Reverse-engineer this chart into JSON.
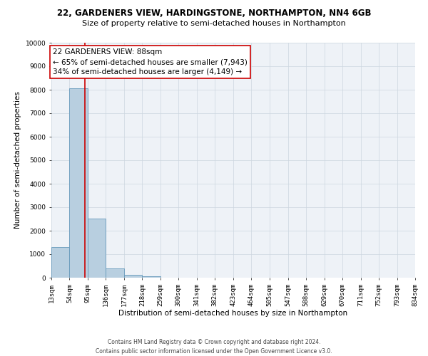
{
  "title_line1": "22, GARDENERS VIEW, HARDINGSTONE, NORTHAMPTON, NN4 6GB",
  "title_line2": "Size of property relative to semi-detached houses in Northampton",
  "xlabel": "Distribution of semi-detached houses by size in Northampton",
  "ylabel": "Number of semi-detached properties",
  "bin_labels": [
    "13sqm",
    "54sqm",
    "95sqm",
    "136sqm",
    "177sqm",
    "218sqm",
    "259sqm",
    "300sqm",
    "341sqm",
    "382sqm",
    "423sqm",
    "464sqm",
    "505sqm",
    "547sqm",
    "588sqm",
    "629sqm",
    "670sqm",
    "711sqm",
    "752sqm",
    "793sqm",
    "834sqm"
  ],
  "bar_heights": [
    1300,
    8050,
    2520,
    380,
    130,
    60,
    0,
    0,
    0,
    0,
    0,
    0,
    0,
    0,
    0,
    0,
    0,
    0,
    0,
    0
  ],
  "bar_color": "#b8cfe0",
  "bar_edge_color": "#6699bb",
  "property_line_x": 88,
  "bin_edges_values": [
    13,
    54,
    95,
    136,
    177,
    218,
    259,
    300,
    341,
    382,
    423,
    464,
    505,
    547,
    588,
    629,
    670,
    711,
    752,
    793,
    834
  ],
  "ylim": [
    0,
    10000
  ],
  "yticks": [
    0,
    1000,
    2000,
    3000,
    4000,
    5000,
    6000,
    7000,
    8000,
    9000,
    10000
  ],
  "annotation_title": "22 GARDENERS VIEW: 88sqm",
  "annotation_line1": "← 65% of semi-detached houses are smaller (7,943)",
  "annotation_line2": "34% of semi-detached houses are larger (4,149) →",
  "annotation_box_color": "#ffffff",
  "annotation_box_edge_color": "#cc0000",
  "red_line_color": "#cc0000",
  "footer_line1": "Contains HM Land Registry data © Crown copyright and database right 2024.",
  "footer_line2": "Contains public sector information licensed under the Open Government Licence v3.0.",
  "background_color": "#eef2f7",
  "grid_color": "#ccd6e0",
  "title_fontsize": 8.5,
  "subtitle_fontsize": 8,
  "axis_label_fontsize": 7.5,
  "tick_fontsize": 6.5,
  "annotation_fontsize": 7.5,
  "footer_fontsize": 5.5
}
